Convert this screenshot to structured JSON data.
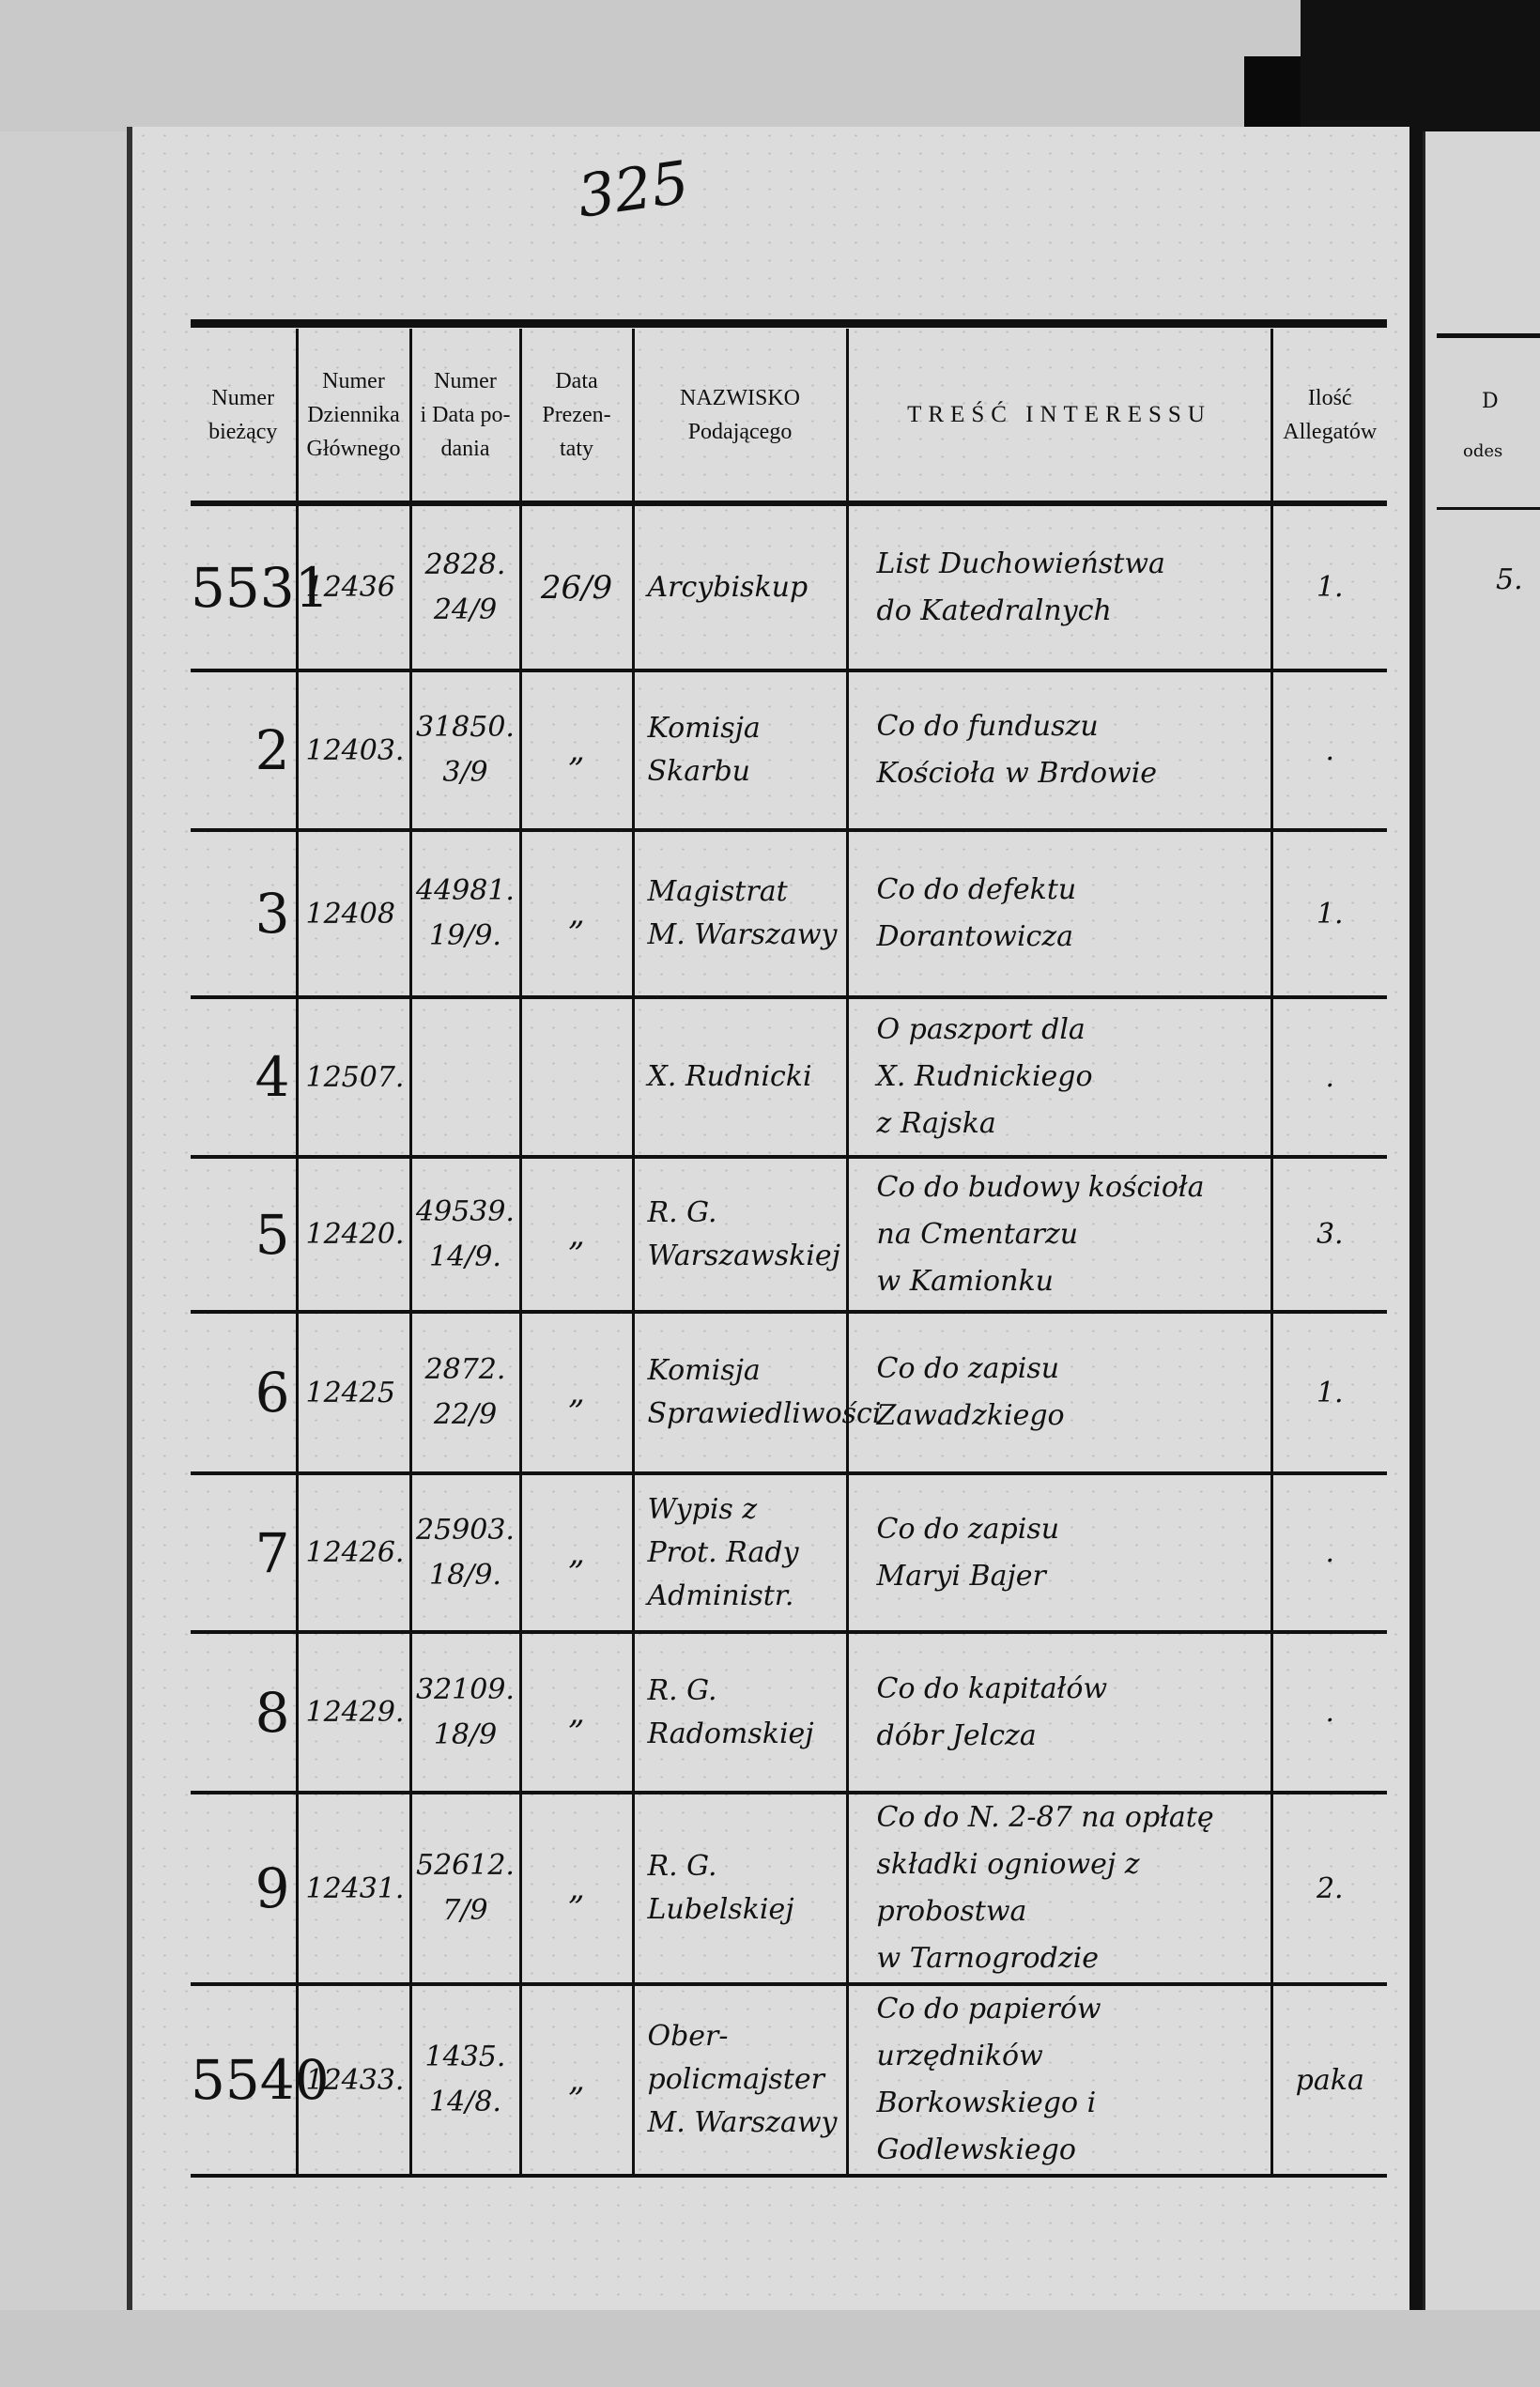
{
  "page_number": "325",
  "headers": [
    "Numer bieżący",
    "Numer Dziennika Głównego",
    "Numer i Data podania",
    "Data Prezentaty",
    "NAZWISKO Podającego",
    "TREŚĆ INTERESSU",
    "Ilość Allegatów"
  ],
  "header_lines": {
    "c0": [
      "Numer",
      "bieżący"
    ],
    "c1": [
      "Numer",
      "Dziennika",
      "Głównego"
    ],
    "c2": [
      "Numer",
      "i Data po-",
      "dania"
    ],
    "c3": [
      "Data",
      "Prezen-",
      "taty"
    ],
    "c4": [
      "NAZWISKO",
      "Podającego"
    ],
    "c5": [
      "TREŚĆ INTERESSU"
    ],
    "c6": [
      "Ilość",
      "Allegatów"
    ]
  },
  "rows": [
    {
      "num": "5531",
      "dz": "12436",
      "nd": [
        "2828.",
        "24/9"
      ],
      "dp": "26/9",
      "name": [
        "Arcybiskup"
      ],
      "tresc": [
        "List Duchowieństwa",
        "do Katedralnych"
      ],
      "al": "1."
    },
    {
      "num": "2",
      "dz": "12403.",
      "nd": [
        "31850.",
        "3/9"
      ],
      "dp": "„",
      "name": [
        "Komisja",
        "Skarbu"
      ],
      "tresc": [
        "Co do funduszu",
        "Kościoła w Brdowie"
      ],
      "al": "."
    },
    {
      "num": "3",
      "dz": "12408",
      "nd": [
        "44981.",
        "19/9."
      ],
      "dp": "„",
      "name": [
        "Magistrat",
        "M. Warszawy"
      ],
      "tresc": [
        "Co do defektu",
        "Dorantowicza"
      ],
      "al": "1."
    },
    {
      "num": "4",
      "dz": "12507.",
      "nd": [
        "",
        ""
      ],
      "dp": "",
      "name": [
        "X. Rudnicki"
      ],
      "tresc": [
        "O paszport dla",
        "X. Rudnickiego",
        "z Rajska"
      ],
      "al": "."
    },
    {
      "num": "5",
      "dz": "12420.",
      "nd": [
        "49539.",
        "14/9."
      ],
      "dp": "„",
      "name": [
        "R. G. Warszawskiej"
      ],
      "tresc": [
        "Co do budowy kościoła",
        "na Cmentarzu",
        "w Kamionku"
      ],
      "al": "3."
    },
    {
      "num": "6",
      "dz": "12425",
      "nd": [
        "2872.",
        "22/9"
      ],
      "dp": "„",
      "name": [
        "Komisja",
        "Sprawiedliwości"
      ],
      "tresc": [
        "Co do zapisu",
        "Zawadzkiego"
      ],
      "al": "1."
    },
    {
      "num": "7",
      "dz": "12426.",
      "nd": [
        "25903.",
        "18/9."
      ],
      "dp": "„",
      "name": [
        "Wypis z",
        "Prot. Rady",
        "Administr."
      ],
      "tresc": [
        "Co do zapisu",
        "Maryi Bajer"
      ],
      "al": "."
    },
    {
      "num": "8",
      "dz": "12429.",
      "nd": [
        "32109.",
        "18/9"
      ],
      "dp": "„",
      "name": [
        "R. G. Radomskiej"
      ],
      "tresc": [
        "Co do kapitałów",
        "dóbr Jelcza"
      ],
      "al": "."
    },
    {
      "num": "9",
      "dz": "12431.",
      "nd": [
        "52612.",
        "7/9"
      ],
      "dp": "„",
      "name": [
        "R. G. Lubelskiej"
      ],
      "tresc": [
        "Co do N. 2-87 na opłatę",
        "składki ogniowej z probostwa",
        "w Tarnogrodzie"
      ],
      "al": "2."
    },
    {
      "num": "5540",
      "dz": "12433.",
      "nd": [
        "1435.",
        "14/8."
      ],
      "dp": "„",
      "name": [
        "Ober-policmajster",
        "M. Warszawy"
      ],
      "tresc": [
        "Co do papierów urzędników",
        "Borkowskiego i Godlewskiego"
      ],
      "al": "paka"
    }
  ],
  "right_page": {
    "header_fragment": "D",
    "header_fragment2": "odes",
    "first_value": "5."
  }
}
